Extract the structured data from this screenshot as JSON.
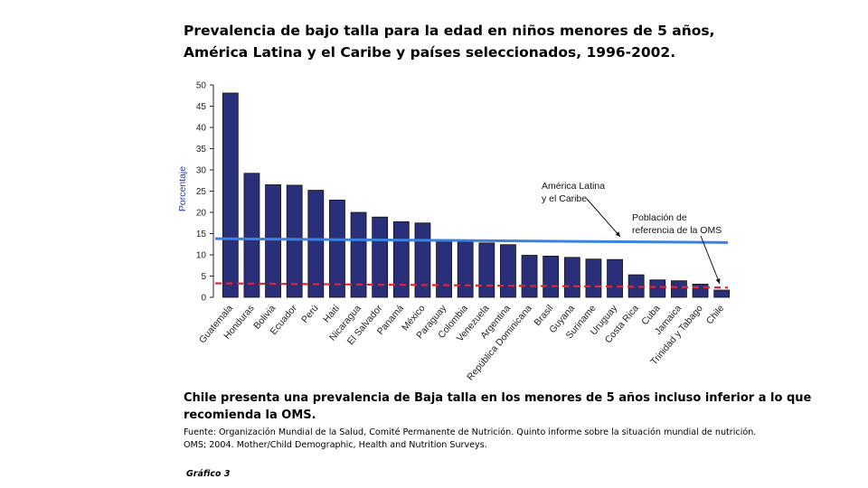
{
  "slide": {
    "title_line1": "Prevalencia de bajo talla para la edad en niños menores de 5 años,",
    "title_line2": "América Latina y el Caribe y países seleccionados, 1996-2002.",
    "conclusion": "Chile presenta una prevalencia de Baja talla en los menores de 5 años incluso inferior a lo que recomienda la OMS.",
    "source_line1": "Fuente:  Organización Mundial de la Salud, Comité Permanente de Nutrición.  Quinto informe sobre la situación mundial de nutrición.",
    "source_line2": "OMS; 2004.  Mother/Child Demographic, Health and Nutrition Surveys.",
    "figure_label": "Gráfico 3"
  },
  "chart_data": {
    "type": "bar",
    "ylabel": "Porcentaje",
    "xlabel": "",
    "ylim": [
      0,
      50
    ],
    "yticks": [
      0,
      5,
      10,
      15,
      20,
      25,
      30,
      35,
      40,
      45,
      50
    ],
    "categories": [
      "Guatemala",
      "Honduras",
      "Bolivia",
      "Ecuador",
      "Perú",
      "Haití",
      "Nicaragua",
      "El Salvador",
      "Panamá",
      "México",
      "Paraguay",
      "Colombia",
      "Venezuela",
      "Argentina",
      "República Dominicana",
      "Brasil",
      "Guyana",
      "Suriname",
      "Uruguay",
      "Costa Rica",
      "Cuba",
      "Jamaica",
      "Trinidad y Tabago",
      "Chile"
    ],
    "values": [
      48.1,
      29.2,
      26.5,
      26.4,
      25.2,
      22.9,
      20.0,
      18.9,
      17.8,
      17.5,
      13.3,
      13.1,
      12.8,
      12.4,
      9.9,
      9.7,
      9.4,
      9.0,
      8.9,
      5.3,
      4.1,
      3.9,
      3.1,
      1.7
    ],
    "bar_color": "#2a2f7a",
    "reference_lines": [
      {
        "label": "América Latina y el Caribe",
        "start": 13.8,
        "end": 12.9,
        "color": "#3b82e0",
        "style": "solid"
      },
      {
        "label": "Población de referencia de la OMS",
        "start": 3.3,
        "end": 2.3,
        "color": "#d8283a",
        "style": "dashed"
      }
    ],
    "annotations": [
      {
        "lines": [
          "América Latina",
          "y el Caribe"
        ],
        "target": "América Latina y el Caribe"
      },
      {
        "lines": [
          "Población de",
          "referencia de la OMS"
        ],
        "target": "Población de referencia de la OMS"
      }
    ],
    "legend": "none",
    "grid": false
  }
}
